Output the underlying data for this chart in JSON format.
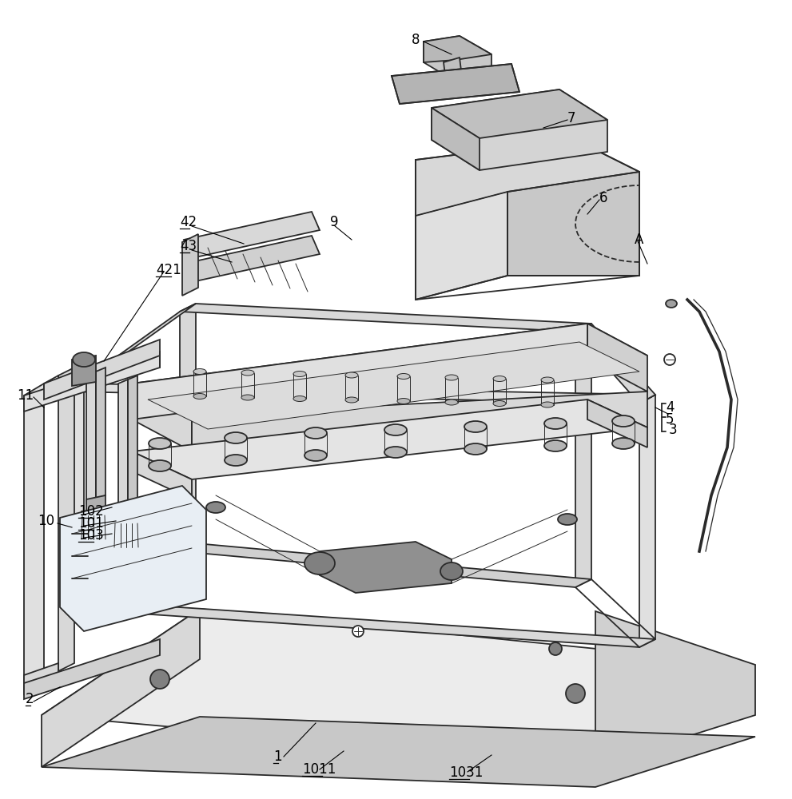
{
  "bg_color": "#ffffff",
  "line_color": "#2a2a2a",
  "fig_width": 9.91,
  "fig_height": 10.0,
  "dpi": 100,
  "lw_main": 1.3,
  "lw_thin": 0.7,
  "lw_thick": 1.8,
  "gray_light": "#e8e8e8",
  "gray_mid": "#cccccc",
  "gray_dark": "#aaaaaa",
  "gray_fill": "#f5f5f5",
  "white": "#ffffff"
}
